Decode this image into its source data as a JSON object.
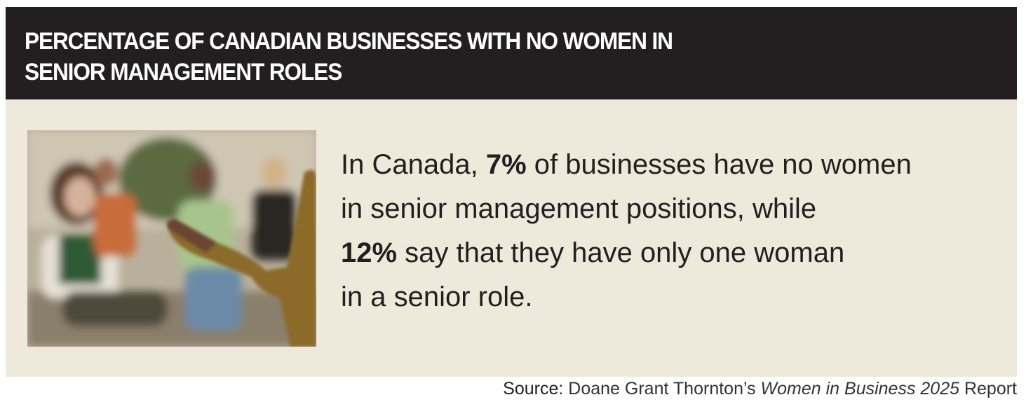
{
  "header": {
    "title_lines": [
      "PERCENTAGE OF CANADIAN BUSINESSES WITH NO WOMEN IN",
      "SENIOR MANAGEMENT ROLES"
    ]
  },
  "body": {
    "lines": [
      [
        {
          "text": "In Canada, "
        },
        {
          "text": "7%",
          "bold": true
        },
        {
          "text": " of businesses have no women"
        }
      ],
      [
        {
          "text": "in senior management positions, while"
        }
      ],
      [
        {
          "text": "12%",
          "bold": true
        },
        {
          "text": " say that they have only one woman"
        }
      ],
      [
        {
          "text": "in a senior role."
        }
      ]
    ]
  },
  "source": {
    "parts": [
      {
        "text": "Source: "
      },
      {
        "text": "Doane Grant Thornton’s ",
        "light": true
      },
      {
        "text": "Women in Business 2025",
        "italic": true,
        "light": true
      },
      {
        "text": " Report",
        "light": true
      }
    ]
  }
}
